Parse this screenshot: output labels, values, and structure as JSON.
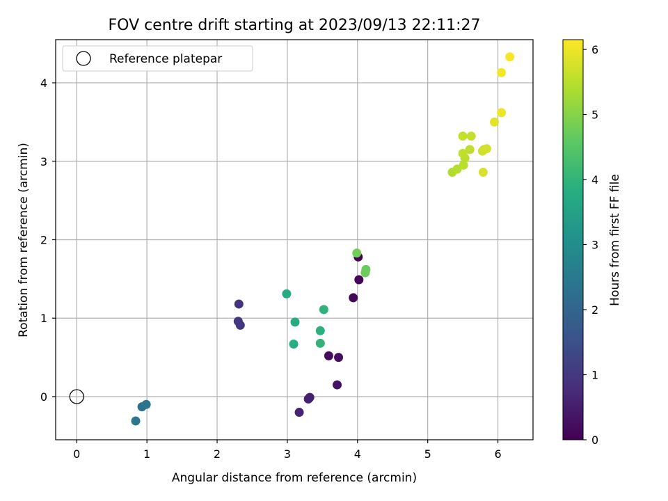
{
  "chart_data": {
    "type": "scatter",
    "title": "FOV centre drift starting at 2023/09/13 22:11:27",
    "xlabel": "Angular distance from reference (arcmin)",
    "ylabel": "Rotation from reference (arcmin)",
    "xlim": [
      -0.3,
      6.5
    ],
    "ylim": [
      -0.55,
      4.55
    ],
    "xticks": [
      0,
      1,
      2,
      3,
      4,
      5,
      6
    ],
    "yticks": [
      0,
      1,
      2,
      3,
      4
    ],
    "grid": true,
    "legend": {
      "placement": "top-left",
      "entries": [
        "Reference platepar"
      ]
    },
    "reference_point": {
      "label": "Reference platepar",
      "x": 0,
      "y": 0
    },
    "colorbar": {
      "label": "Hours from first FF file",
      "colormap": "viridis",
      "range": [
        0,
        6.15
      ],
      "ticks": [
        0,
        1,
        2,
        3,
        4,
        5,
        6
      ]
    },
    "points": [
      {
        "x": 4.01,
        "y": 1.78,
        "h": 0.0
      },
      {
        "x": 4.02,
        "y": 1.49,
        "h": 0.05
      },
      {
        "x": 3.94,
        "y": 1.26,
        "h": 0.1
      },
      {
        "x": 3.59,
        "y": 0.52,
        "h": 0.2
      },
      {
        "x": 3.73,
        "y": 0.5,
        "h": 0.25
      },
      {
        "x": 3.71,
        "y": 0.15,
        "h": 0.3
      },
      {
        "x": 3.32,
        "y": -0.01,
        "h": 0.5
      },
      {
        "x": 3.3,
        "y": -0.03,
        "h": 0.55
      },
      {
        "x": 3.17,
        "y": -0.2,
        "h": 0.6
      },
      {
        "x": 2.31,
        "y": 1.18,
        "h": 0.9
      },
      {
        "x": 2.3,
        "y": 0.96,
        "h": 0.95
      },
      {
        "x": 2.33,
        "y": 0.91,
        "h": 1.0
      },
      {
        "x": 0.93,
        "y": -0.13,
        "h": 2.3
      },
      {
        "x": 0.99,
        "y": -0.1,
        "h": 2.35
      },
      {
        "x": 0.84,
        "y": -0.31,
        "h": 2.4
      },
      {
        "x": 2.99,
        "y": 1.31,
        "h": 3.7
      },
      {
        "x": 3.11,
        "y": 0.95,
        "h": 3.75
      },
      {
        "x": 3.09,
        "y": 0.67,
        "h": 3.8
      },
      {
        "x": 3.47,
        "y": 0.84,
        "h": 3.9
      },
      {
        "x": 3.52,
        "y": 1.11,
        "h": 3.95
      },
      {
        "x": 3.47,
        "y": 0.68,
        "h": 4.0
      },
      {
        "x": 4.12,
        "y": 1.62,
        "h": 4.7
      },
      {
        "x": 4.11,
        "y": 1.58,
        "h": 4.75
      },
      {
        "x": 3.99,
        "y": 1.83,
        "h": 4.8
      },
      {
        "x": 5.35,
        "y": 2.86,
        "h": 5.4
      },
      {
        "x": 5.42,
        "y": 2.9,
        "h": 5.45
      },
      {
        "x": 5.51,
        "y": 2.95,
        "h": 5.5
      },
      {
        "x": 5.53,
        "y": 3.04,
        "h": 5.5
      },
      {
        "x": 5.5,
        "y": 3.1,
        "h": 5.55
      },
      {
        "x": 5.6,
        "y": 3.15,
        "h": 5.55
      },
      {
        "x": 5.5,
        "y": 3.32,
        "h": 5.6
      },
      {
        "x": 5.62,
        "y": 3.32,
        "h": 5.6
      },
      {
        "x": 5.78,
        "y": 3.13,
        "h": 5.7
      },
      {
        "x": 5.8,
        "y": 3.15,
        "h": 5.7
      },
      {
        "x": 5.84,
        "y": 3.16,
        "h": 5.75
      },
      {
        "x": 5.79,
        "y": 2.86,
        "h": 5.8
      },
      {
        "x": 5.95,
        "y": 3.5,
        "h": 5.9
      },
      {
        "x": 6.05,
        "y": 3.62,
        "h": 6.0
      },
      {
        "x": 6.05,
        "y": 4.13,
        "h": 6.05
      },
      {
        "x": 6.17,
        "y": 4.33,
        "h": 6.1
      }
    ]
  }
}
